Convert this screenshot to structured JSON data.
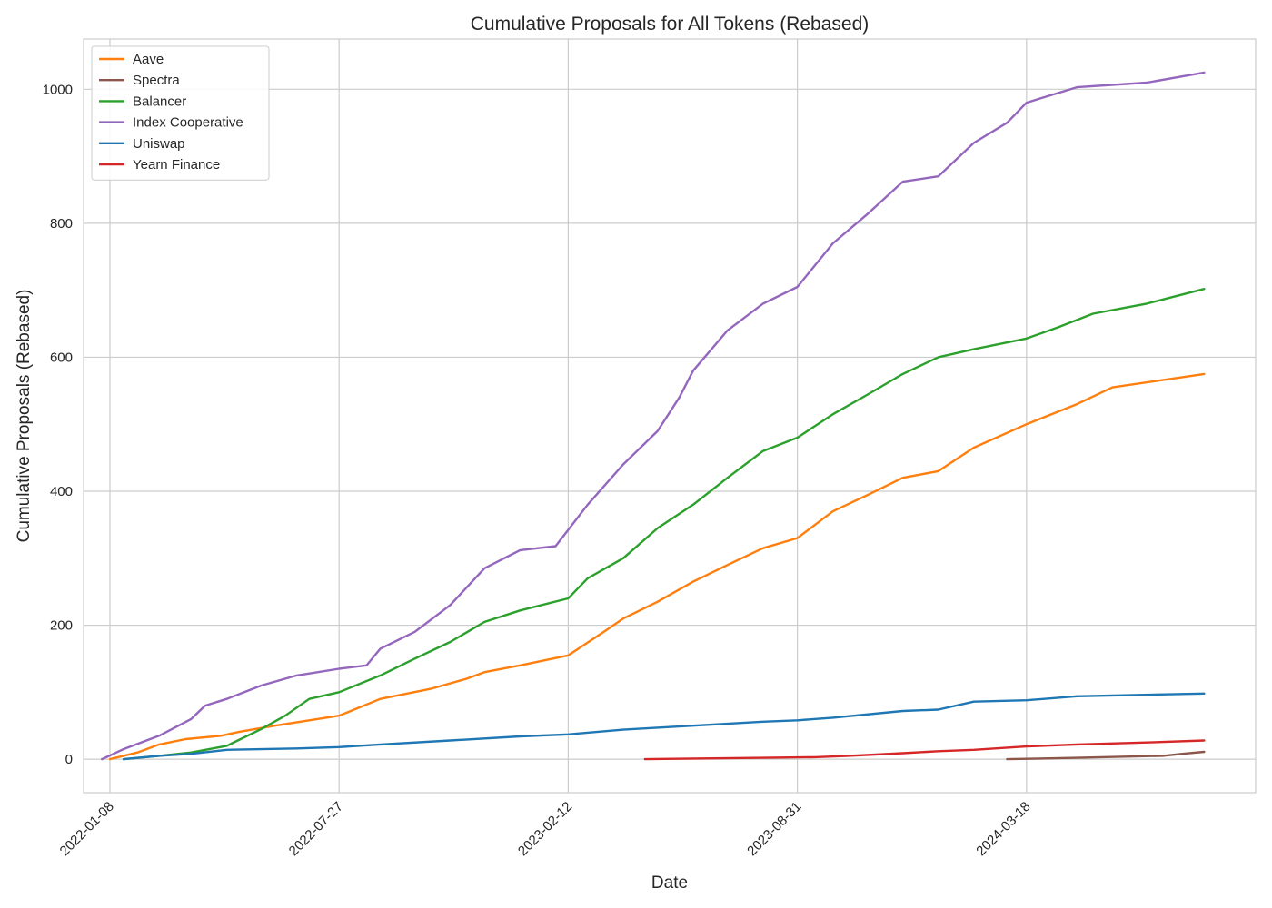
{
  "chart_data": {
    "type": "line",
    "title": "Cumulative Proposals for All Tokens (Rebased)",
    "xlabel": "Date",
    "ylabel": "Cumulative Proposals (Rebased)",
    "ylim": [
      -50,
      1075
    ],
    "xlim": [
      "2021-12-16",
      "2024-10-04"
    ],
    "x_ticks": [
      "2022-01-08",
      "2022-07-27",
      "2023-02-12",
      "2023-08-31",
      "2024-03-18"
    ],
    "y_ticks": [
      0,
      200,
      400,
      600,
      800,
      1000
    ],
    "grid": true,
    "legend_position": "top-left",
    "series": [
      {
        "name": "Aave",
        "color": "#ff7f0e",
        "points": [
          [
            "2022-01-08",
            0
          ],
          [
            "2022-02-01",
            10
          ],
          [
            "2022-02-20",
            22
          ],
          [
            "2022-03-15",
            30
          ],
          [
            "2022-04-15",
            35
          ],
          [
            "2022-05-01",
            41
          ],
          [
            "2022-06-01",
            50
          ],
          [
            "2022-07-01",
            58
          ],
          [
            "2022-07-27",
            65
          ],
          [
            "2022-09-01",
            90
          ],
          [
            "2022-10-15",
            105
          ],
          [
            "2022-11-15",
            120
          ],
          [
            "2022-12-01",
            130
          ],
          [
            "2023-01-01",
            140
          ],
          [
            "2023-02-12",
            155
          ],
          [
            "2023-03-15",
            190
          ],
          [
            "2023-04-01",
            210
          ],
          [
            "2023-05-01",
            235
          ],
          [
            "2023-06-01",
            265
          ],
          [
            "2023-07-01",
            290
          ],
          [
            "2023-08-01",
            315
          ],
          [
            "2023-08-31",
            330
          ],
          [
            "2023-10-01",
            370
          ],
          [
            "2023-11-01",
            395
          ],
          [
            "2023-12-01",
            420
          ],
          [
            "2024-01-01",
            430
          ],
          [
            "2024-02-01",
            465
          ],
          [
            "2024-03-18",
            500
          ],
          [
            "2024-05-01",
            530
          ],
          [
            "2024-06-01",
            555
          ],
          [
            "2024-08-20",
            575
          ]
        ]
      },
      {
        "name": "Spectra",
        "color": "#8c564b",
        "points": [
          [
            "2024-03-01",
            0
          ],
          [
            "2024-05-01",
            2
          ],
          [
            "2024-07-15",
            5
          ],
          [
            "2024-08-01",
            8
          ],
          [
            "2024-08-20",
            11
          ]
        ]
      },
      {
        "name": "Balancer",
        "color": "#2ca02c",
        "points": [
          [
            "2022-01-20",
            0
          ],
          [
            "2022-02-20",
            5
          ],
          [
            "2022-03-20",
            10
          ],
          [
            "2022-04-20",
            20
          ],
          [
            "2022-05-20",
            45
          ],
          [
            "2022-06-10",
            65
          ],
          [
            "2022-07-01",
            90
          ],
          [
            "2022-07-27",
            100
          ],
          [
            "2022-09-01",
            125
          ],
          [
            "2022-10-01",
            150
          ],
          [
            "2022-11-01",
            175
          ],
          [
            "2022-12-01",
            205
          ],
          [
            "2023-01-01",
            222
          ],
          [
            "2023-02-12",
            240
          ],
          [
            "2023-03-01",
            270
          ],
          [
            "2023-04-01",
            300
          ],
          [
            "2023-05-01",
            345
          ],
          [
            "2023-06-01",
            380
          ],
          [
            "2023-07-01",
            420
          ],
          [
            "2023-08-01",
            460
          ],
          [
            "2023-08-31",
            480
          ],
          [
            "2023-10-01",
            515
          ],
          [
            "2023-11-01",
            545
          ],
          [
            "2023-12-01",
            575
          ],
          [
            "2024-01-01",
            600
          ],
          [
            "2024-02-01",
            612
          ],
          [
            "2024-03-18",
            628
          ],
          [
            "2024-04-15",
            645
          ],
          [
            "2024-05-15",
            665
          ],
          [
            "2024-07-01",
            680
          ],
          [
            "2024-08-20",
            702
          ]
        ]
      },
      {
        "name": "Index Cooperative",
        "color": "#9467bd",
        "points": [
          [
            "2022-01-01",
            0
          ],
          [
            "2022-01-20",
            15
          ],
          [
            "2022-02-20",
            35
          ],
          [
            "2022-03-20",
            60
          ],
          [
            "2022-04-01",
            80
          ],
          [
            "2022-04-20",
            90
          ],
          [
            "2022-05-20",
            110
          ],
          [
            "2022-06-20",
            125
          ],
          [
            "2022-07-27",
            135
          ],
          [
            "2022-08-20",
            140
          ],
          [
            "2022-09-01",
            165
          ],
          [
            "2022-10-01",
            190
          ],
          [
            "2022-11-01",
            230
          ],
          [
            "2022-12-01",
            285
          ],
          [
            "2023-01-01",
            312
          ],
          [
            "2023-02-01",
            318
          ],
          [
            "2023-03-01",
            380
          ],
          [
            "2023-04-01",
            440
          ],
          [
            "2023-05-01",
            490
          ],
          [
            "2023-05-20",
            540
          ],
          [
            "2023-06-01",
            580
          ],
          [
            "2023-07-01",
            640
          ],
          [
            "2023-08-01",
            680
          ],
          [
            "2023-08-31",
            705
          ],
          [
            "2023-10-01",
            770
          ],
          [
            "2023-11-01",
            815
          ],
          [
            "2023-12-01",
            862
          ],
          [
            "2024-01-01",
            870
          ],
          [
            "2024-02-01",
            920
          ],
          [
            "2024-03-01",
            950
          ],
          [
            "2024-03-18",
            980
          ],
          [
            "2024-05-01",
            1003
          ],
          [
            "2024-07-01",
            1010
          ],
          [
            "2024-08-20",
            1025
          ]
        ]
      },
      {
        "name": "Uniswap",
        "color": "#1f77b4",
        "points": [
          [
            "2022-01-20",
            0
          ],
          [
            "2022-02-20",
            5
          ],
          [
            "2022-03-20",
            8
          ],
          [
            "2022-04-20",
            14
          ],
          [
            "2022-06-20",
            16
          ],
          [
            "2022-07-27",
            18
          ],
          [
            "2022-09-01",
            22
          ],
          [
            "2022-11-01",
            28
          ],
          [
            "2023-01-01",
            34
          ],
          [
            "2023-02-12",
            37
          ],
          [
            "2023-04-01",
            44
          ],
          [
            "2023-06-01",
            50
          ],
          [
            "2023-08-01",
            56
          ],
          [
            "2023-08-31",
            58
          ],
          [
            "2023-10-01",
            62
          ],
          [
            "2023-12-01",
            72
          ],
          [
            "2024-01-01",
            74
          ],
          [
            "2024-02-01",
            86
          ],
          [
            "2024-03-18",
            88
          ],
          [
            "2024-05-01",
            94
          ],
          [
            "2024-08-20",
            98
          ]
        ]
      },
      {
        "name": "Yearn Finance",
        "color": "#d62728",
        "points": [
          [
            "2023-04-20",
            0
          ],
          [
            "2023-06-01",
            1
          ],
          [
            "2023-08-01",
            2
          ],
          [
            "2023-09-15",
            3
          ],
          [
            "2023-10-15",
            5
          ],
          [
            "2023-12-01",
            9
          ],
          [
            "2024-01-01",
            12
          ],
          [
            "2024-02-01",
            14
          ],
          [
            "2024-03-18",
            19
          ],
          [
            "2024-05-01",
            22
          ],
          [
            "2024-07-01",
            25
          ],
          [
            "2024-08-20",
            28
          ]
        ]
      }
    ]
  }
}
